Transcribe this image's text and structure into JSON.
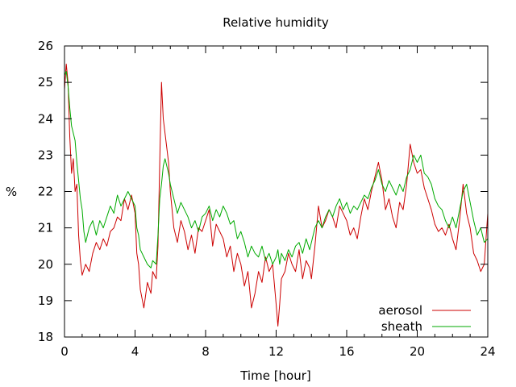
{
  "chart_data": {
    "type": "line",
    "title": "Relative humidity",
    "xlabel": "Time [hour]",
    "ylabel": "%",
    "xlim": [
      0,
      24
    ],
    "ylim": [
      18,
      26
    ],
    "xticks": [
      0,
      4,
      8,
      12,
      16,
      20,
      24
    ],
    "yticks": [
      18,
      19,
      20,
      21,
      22,
      23,
      24,
      25,
      26
    ],
    "grid": false,
    "legend_position": "bottom-right",
    "series": [
      {
        "name": "aerosol",
        "color": "#cc0000",
        "points": [
          [
            0,
            24.8
          ],
          [
            0.1,
            25.5
          ],
          [
            0.2,
            25.0
          ],
          [
            0.3,
            23.5
          ],
          [
            0.4,
            22.5
          ],
          [
            0.5,
            22.9
          ],
          [
            0.6,
            22.0
          ],
          [
            0.7,
            22.2
          ],
          [
            0.8,
            20.8
          ],
          [
            0.9,
            20.1
          ],
          [
            1.0,
            19.7
          ],
          [
            1.2,
            20.0
          ],
          [
            1.4,
            19.8
          ],
          [
            1.6,
            20.3
          ],
          [
            1.8,
            20.6
          ],
          [
            2.0,
            20.4
          ],
          [
            2.2,
            20.7
          ],
          [
            2.4,
            20.5
          ],
          [
            2.6,
            20.9
          ],
          [
            2.8,
            21.0
          ],
          [
            3.0,
            21.3
          ],
          [
            3.2,
            21.2
          ],
          [
            3.4,
            21.8
          ],
          [
            3.6,
            21.5
          ],
          [
            3.8,
            21.9
          ],
          [
            4.0,
            21.4
          ],
          [
            4.1,
            20.3
          ],
          [
            4.2,
            20.0
          ],
          [
            4.3,
            19.3
          ],
          [
            4.5,
            18.8
          ],
          [
            4.7,
            19.5
          ],
          [
            4.9,
            19.2
          ],
          [
            5.0,
            19.8
          ],
          [
            5.2,
            19.6
          ],
          [
            5.3,
            20.5
          ],
          [
            5.4,
            22.8
          ],
          [
            5.5,
            25.0
          ],
          [
            5.6,
            24.0
          ],
          [
            5.7,
            23.6
          ],
          [
            5.9,
            22.8
          ],
          [
            6.0,
            22.0
          ],
          [
            6.2,
            21.0
          ],
          [
            6.4,
            20.6
          ],
          [
            6.6,
            21.2
          ],
          [
            6.8,
            20.9
          ],
          [
            7.0,
            20.4
          ],
          [
            7.2,
            20.8
          ],
          [
            7.4,
            20.3
          ],
          [
            7.6,
            21.0
          ],
          [
            7.8,
            20.9
          ],
          [
            8.0,
            21.2
          ],
          [
            8.2,
            21.5
          ],
          [
            8.4,
            20.5
          ],
          [
            8.6,
            21.1
          ],
          [
            8.8,
            20.9
          ],
          [
            9.0,
            20.7
          ],
          [
            9.2,
            20.2
          ],
          [
            9.4,
            20.5
          ],
          [
            9.6,
            19.8
          ],
          [
            9.8,
            20.3
          ],
          [
            10.0,
            20.0
          ],
          [
            10.2,
            19.4
          ],
          [
            10.4,
            19.8
          ],
          [
            10.6,
            18.8
          ],
          [
            10.8,
            19.2
          ],
          [
            11.0,
            19.8
          ],
          [
            11.2,
            19.5
          ],
          [
            11.4,
            20.2
          ],
          [
            11.6,
            19.8
          ],
          [
            11.8,
            20.0
          ],
          [
            12.0,
            18.9
          ],
          [
            12.1,
            18.3
          ],
          [
            12.2,
            18.9
          ],
          [
            12.3,
            19.6
          ],
          [
            12.5,
            19.8
          ],
          [
            12.7,
            20.3
          ],
          [
            12.9,
            20.0
          ],
          [
            13.1,
            19.8
          ],
          [
            13.3,
            20.4
          ],
          [
            13.5,
            19.6
          ],
          [
            13.7,
            20.1
          ],
          [
            13.9,
            19.9
          ],
          [
            14.0,
            19.6
          ],
          [
            14.2,
            20.5
          ],
          [
            14.4,
            21.6
          ],
          [
            14.6,
            21.0
          ],
          [
            14.8,
            21.2
          ],
          [
            15.0,
            21.5
          ],
          [
            15.2,
            21.3
          ],
          [
            15.4,
            21.0
          ],
          [
            15.6,
            21.6
          ],
          [
            15.8,
            21.4
          ],
          [
            16.0,
            21.2
          ],
          [
            16.2,
            20.8
          ],
          [
            16.4,
            21.0
          ],
          [
            16.6,
            20.7
          ],
          [
            16.8,
            21.3
          ],
          [
            17.0,
            21.8
          ],
          [
            17.2,
            21.5
          ],
          [
            17.4,
            22.0
          ],
          [
            17.6,
            22.4
          ],
          [
            17.8,
            22.8
          ],
          [
            18.0,
            22.3
          ],
          [
            18.2,
            21.5
          ],
          [
            18.4,
            21.8
          ],
          [
            18.6,
            21.3
          ],
          [
            18.8,
            21.0
          ],
          [
            19.0,
            21.7
          ],
          [
            19.2,
            21.5
          ],
          [
            19.4,
            22.2
          ],
          [
            19.6,
            23.3
          ],
          [
            19.8,
            22.8
          ],
          [
            20.0,
            22.5
          ],
          [
            20.2,
            22.6
          ],
          [
            20.4,
            22.1
          ],
          [
            20.6,
            21.8
          ],
          [
            20.8,
            21.5
          ],
          [
            21.0,
            21.1
          ],
          [
            21.2,
            20.9
          ],
          [
            21.4,
            21.0
          ],
          [
            21.6,
            20.8
          ],
          [
            21.8,
            21.1
          ],
          [
            22.0,
            20.7
          ],
          [
            22.2,
            20.4
          ],
          [
            22.4,
            21.2
          ],
          [
            22.6,
            22.2
          ],
          [
            22.8,
            21.4
          ],
          [
            23.0,
            21.0
          ],
          [
            23.2,
            20.3
          ],
          [
            23.4,
            20.1
          ],
          [
            23.6,
            19.8
          ],
          [
            23.8,
            20.0
          ],
          [
            24.0,
            21.4
          ]
        ]
      },
      {
        "name": "sheath",
        "color": "#00aa00",
        "points": [
          [
            0,
            25.2
          ],
          [
            0.1,
            25.3
          ],
          [
            0.2,
            24.9
          ],
          [
            0.3,
            24.3
          ],
          [
            0.4,
            23.8
          ],
          [
            0.5,
            23.6
          ],
          [
            0.6,
            23.4
          ],
          [
            0.7,
            22.8
          ],
          [
            0.8,
            22.3
          ],
          [
            0.9,
            21.8
          ],
          [
            1.0,
            21.5
          ],
          [
            1.1,
            20.9
          ],
          [
            1.2,
            20.6
          ],
          [
            1.4,
            21.0
          ],
          [
            1.6,
            21.2
          ],
          [
            1.8,
            20.8
          ],
          [
            2.0,
            21.2
          ],
          [
            2.2,
            21.0
          ],
          [
            2.4,
            21.3
          ],
          [
            2.6,
            21.6
          ],
          [
            2.8,
            21.4
          ],
          [
            3.0,
            21.9
          ],
          [
            3.2,
            21.6
          ],
          [
            3.4,
            21.8
          ],
          [
            3.6,
            22.0
          ],
          [
            3.8,
            21.8
          ],
          [
            4.0,
            21.6
          ],
          [
            4.1,
            21.0
          ],
          [
            4.2,
            20.8
          ],
          [
            4.3,
            20.4
          ],
          [
            4.5,
            20.2
          ],
          [
            4.7,
            20.0
          ],
          [
            4.9,
            19.9
          ],
          [
            5.0,
            20.1
          ],
          [
            5.2,
            20.0
          ],
          [
            5.3,
            20.8
          ],
          [
            5.4,
            21.8
          ],
          [
            5.5,
            22.2
          ],
          [
            5.6,
            22.7
          ],
          [
            5.7,
            22.9
          ],
          [
            5.9,
            22.5
          ],
          [
            6.0,
            22.2
          ],
          [
            6.2,
            21.8
          ],
          [
            6.4,
            21.4
          ],
          [
            6.6,
            21.7
          ],
          [
            6.8,
            21.5
          ],
          [
            7.0,
            21.3
          ],
          [
            7.2,
            21.0
          ],
          [
            7.4,
            21.2
          ],
          [
            7.6,
            20.9
          ],
          [
            7.8,
            21.3
          ],
          [
            8.0,
            21.4
          ],
          [
            8.2,
            21.6
          ],
          [
            8.4,
            21.2
          ],
          [
            8.6,
            21.5
          ],
          [
            8.8,
            21.3
          ],
          [
            9.0,
            21.6
          ],
          [
            9.2,
            21.4
          ],
          [
            9.4,
            21.1
          ],
          [
            9.6,
            21.2
          ],
          [
            9.8,
            20.7
          ],
          [
            10.0,
            20.9
          ],
          [
            10.2,
            20.6
          ],
          [
            10.4,
            20.2
          ],
          [
            10.6,
            20.5
          ],
          [
            10.8,
            20.3
          ],
          [
            11.0,
            20.2
          ],
          [
            11.2,
            20.5
          ],
          [
            11.4,
            20.1
          ],
          [
            11.6,
            20.3
          ],
          [
            11.8,
            20.0
          ],
          [
            12.0,
            20.2
          ],
          [
            12.1,
            20.4
          ],
          [
            12.2,
            20.0
          ],
          [
            12.3,
            20.3
          ],
          [
            12.5,
            20.1
          ],
          [
            12.7,
            20.4
          ],
          [
            12.9,
            20.2
          ],
          [
            13.1,
            20.5
          ],
          [
            13.3,
            20.6
          ],
          [
            13.5,
            20.3
          ],
          [
            13.7,
            20.7
          ],
          [
            13.9,
            20.4
          ],
          [
            14.0,
            20.6
          ],
          [
            14.2,
            21.0
          ],
          [
            14.4,
            21.2
          ],
          [
            14.6,
            21.0
          ],
          [
            14.8,
            21.3
          ],
          [
            15.0,
            21.5
          ],
          [
            15.2,
            21.3
          ],
          [
            15.4,
            21.6
          ],
          [
            15.6,
            21.8
          ],
          [
            15.8,
            21.5
          ],
          [
            16.0,
            21.7
          ],
          [
            16.2,
            21.4
          ],
          [
            16.4,
            21.6
          ],
          [
            16.6,
            21.5
          ],
          [
            16.8,
            21.7
          ],
          [
            17.0,
            21.9
          ],
          [
            17.2,
            21.8
          ],
          [
            17.4,
            22.1
          ],
          [
            17.6,
            22.3
          ],
          [
            17.8,
            22.6
          ],
          [
            18.0,
            22.2
          ],
          [
            18.2,
            22.0
          ],
          [
            18.4,
            22.3
          ],
          [
            18.6,
            22.1
          ],
          [
            18.8,
            21.9
          ],
          [
            19.0,
            22.2
          ],
          [
            19.2,
            22.0
          ],
          [
            19.4,
            22.4
          ],
          [
            19.6,
            22.6
          ],
          [
            19.8,
            23.0
          ],
          [
            20.0,
            22.8
          ],
          [
            20.2,
            23.0
          ],
          [
            20.4,
            22.5
          ],
          [
            20.6,
            22.4
          ],
          [
            20.8,
            22.2
          ],
          [
            21.0,
            21.8
          ],
          [
            21.2,
            21.6
          ],
          [
            21.4,
            21.5
          ],
          [
            21.6,
            21.2
          ],
          [
            21.8,
            21.0
          ],
          [
            22.0,
            21.3
          ],
          [
            22.2,
            21.0
          ],
          [
            22.4,
            21.5
          ],
          [
            22.6,
            22.0
          ],
          [
            22.8,
            22.2
          ],
          [
            23.0,
            21.7
          ],
          [
            23.2,
            21.2
          ],
          [
            23.4,
            20.8
          ],
          [
            23.6,
            21.0
          ],
          [
            23.8,
            20.6
          ],
          [
            24.0,
            20.7
          ]
        ]
      }
    ]
  }
}
